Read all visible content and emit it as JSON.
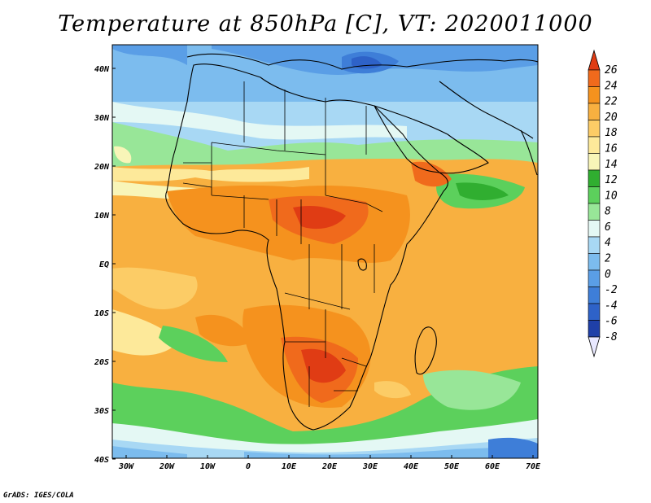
{
  "title": "Temperature at 850hPa [C], VT: 2020011000",
  "credit": "GrADS: IGES/COLA",
  "map": {
    "lon_range": [
      -30,
      75
    ],
    "lat_range": [
      -40,
      45
    ],
    "x_ticks": [
      "30W",
      "20W",
      "10W",
      "0",
      "10E",
      "20E",
      "30E",
      "40E",
      "50E",
      "60E",
      "70E"
    ],
    "y_ticks": [
      "40N",
      "30N",
      "20N",
      "10N",
      "EQ",
      "10S",
      "20S",
      "30S",
      "40S"
    ]
  },
  "colorbar": {
    "labels": [
      "26",
      "24",
      "22",
      "20",
      "18",
      "16",
      "14",
      "12",
      "10",
      "8",
      "6",
      "4",
      "2",
      "0",
      "-2",
      "-4",
      "-6",
      "-8"
    ],
    "colors": [
      "#e03c14",
      "#f06a1c",
      "#f5921e",
      "#f8b040",
      "#fccc66",
      "#fde99a",
      "#f8f5b8",
      "#30ae30",
      "#5cd05c",
      "#98e698",
      "#e4f8f4",
      "#a8d8f4",
      "#7cbcee",
      "#5a9ee6",
      "#3e7ed8",
      "#2e62c8",
      "#1f40a8",
      "#131c7c"
    ]
  }
}
